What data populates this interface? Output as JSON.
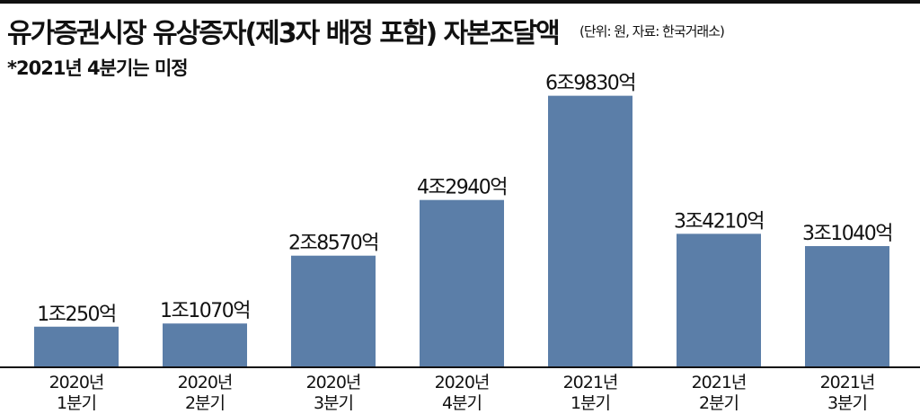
{
  "header": {
    "title": "유가증권시장 유상증자(제3자 배정 포함) 자본조달액",
    "source": "(단위: 원, 자료: 한국거래소)",
    "note": "*2021년 4분기는 미정"
  },
  "colors": {
    "bar": "#5b7ea8",
    "axis": "#111111",
    "text": "#111111"
  },
  "chart_data": {
    "type": "bar",
    "categories": [
      "2020년\n1분기",
      "2020년\n2분기",
      "2020년\n3분기",
      "2020년\n4분기",
      "2021년\n1분기",
      "2021년\n2분기",
      "2021년\n3분기"
    ],
    "values": [
      10250,
      11070,
      28570,
      42940,
      69830,
      34210,
      31040
    ],
    "value_unit": "억원",
    "data_labels": [
      "1조250억",
      "1조1070억",
      "2조8570억",
      "4조2940억",
      "6조9830억",
      "3조4210억",
      "3조1040억"
    ],
    "title": "유가증권시장 유상증자(제3자 배정 포함) 자본조달액",
    "ylim": [
      0,
      76000
    ],
    "grid": false,
    "legend": "none"
  }
}
